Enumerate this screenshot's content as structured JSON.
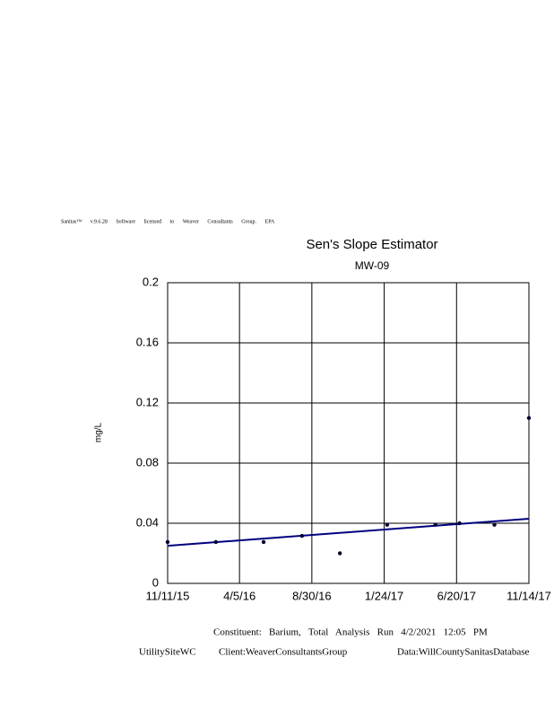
{
  "chart_data": {
    "type": "scatter",
    "header_note": "Sanitas™ v.9.6.28 Software licensed to Weaver Consultants Group. EPA",
    "title": "Sen's Slope Estimator",
    "subtitle": "MW-09",
    "ylabel": "mg/L",
    "x": [
      "2015-11-11",
      "2016-02-17",
      "2016-05-24",
      "2016-08-10",
      "2016-10-26",
      "2017-01-30",
      "2017-05-08",
      "2017-06-26",
      "2017-09-05",
      "2017-11-14"
    ],
    "values": [
      0.0275,
      0.0275,
      0.0275,
      0.0316,
      0.02,
      0.039,
      0.039,
      0.04,
      0.039,
      0.11
    ],
    "color": "#000033",
    "trend": {
      "x": [
        "2015-11-11",
        "2017-11-14"
      ],
      "values": [
        0.025,
        0.043
      ],
      "color": "#000080"
    },
    "xlim": [
      "2015-11-11",
      "2017-11-14"
    ],
    "xticks": [
      {
        "value": "2015-11-11",
        "label": "11/11/15"
      },
      {
        "value": "2016-04-05",
        "label": "4/5/16"
      },
      {
        "value": "2016-08-30",
        "label": "8/30/16"
      },
      {
        "value": "2017-01-24",
        "label": "1/24/17"
      },
      {
        "value": "2017-06-20",
        "label": "6/20/17"
      },
      {
        "value": "2017-11-14",
        "label": "11/14/17"
      }
    ],
    "ylim": [
      0,
      0.2
    ],
    "yticks": [
      0,
      0.04,
      0.08,
      0.12,
      0.16,
      0.2
    ],
    "grid": true,
    "footer": {
      "line1": "Constituent:   Barium,   Total   Analysis   Run   4/2/2021   12:05   PM",
      "site": "UtilitySiteWC",
      "client": "Client:WeaverConsultantsGroup",
      "data": "Data:WillCountySanitasDatabase"
    }
  }
}
